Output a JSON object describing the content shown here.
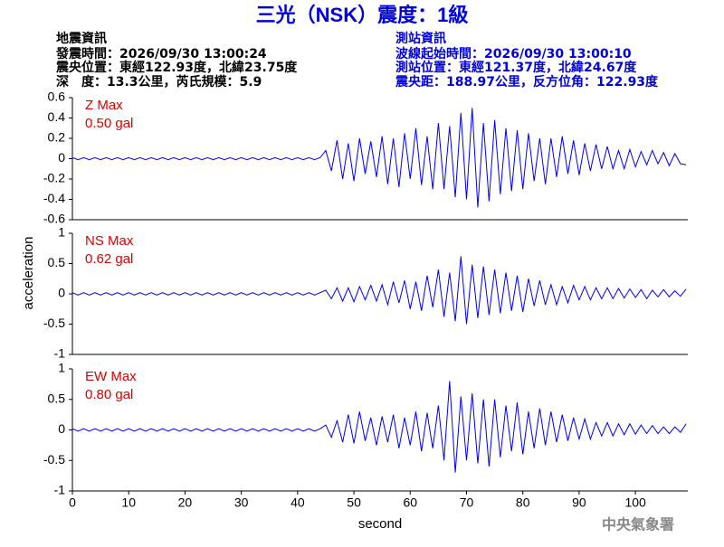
{
  "header": {
    "title": "三光（NSK）震度：1級",
    "left_heading": "地震資訊",
    "left_lines": [
      "發震時間：2026/09/30 13:00:24",
      "震央位置：東經122.93度，北緯23.75度",
      "深　度：13.3公里，芮氏規模：5.9"
    ],
    "right_heading": "測站資訊",
    "right_lines": [
      "波線起始時間：2026/09/30 13:00:10",
      "測站位置：東經121.37度，北緯24.67度",
      "震央距：188.97公里，反方位角：122.93度"
    ],
    "y_label": "acceleration",
    "footer": "中央氣象署"
  },
  "chart_data": [
    {
      "type": "line",
      "label": "Z Max",
      "max_label": "0.50 gal",
      "color": "#0000ee",
      "xlim": [
        0,
        109.3
      ],
      "ylim": [
        -0.6,
        0.6
      ],
      "yticks": [
        -0.6,
        -0.4,
        -0.2,
        0,
        0.2,
        0.4,
        0.6
      ],
      "x": [
        0,
        1,
        2,
        3,
        4,
        5,
        6,
        7,
        8,
        9,
        10,
        11,
        12,
        13,
        14,
        15,
        16,
        17,
        18,
        19,
        20,
        21,
        22,
        23,
        24,
        25,
        26,
        27,
        28,
        29,
        30,
        31,
        32,
        33,
        34,
        35,
        36,
        37,
        38,
        39,
        40,
        41,
        42,
        43,
        44,
        45,
        46,
        47,
        48,
        49,
        50,
        51,
        52,
        53,
        54,
        55,
        56,
        57,
        58,
        59,
        60,
        61,
        62,
        63,
        64,
        65,
        66,
        67,
        68,
        69,
        70,
        71,
        72,
        73,
        74,
        75,
        76,
        77,
        78,
        79,
        80,
        81,
        82,
        83,
        84,
        85,
        86,
        87,
        88,
        89,
        90,
        91,
        92,
        93,
        94,
        95,
        96,
        97,
        98,
        99,
        100,
        101,
        102,
        103,
        104,
        105,
        106,
        107,
        108,
        109
      ],
      "values": [
        0.01,
        -0.01,
        0.01,
        -0.01,
        0.01,
        -0.01,
        0.01,
        -0.01,
        0.01,
        -0.01,
        0.01,
        -0.01,
        0.01,
        -0.01,
        0.01,
        -0.01,
        0.01,
        -0.01,
        0.01,
        -0.01,
        0.01,
        -0.01,
        0.01,
        -0.01,
        0.01,
        -0.01,
        0.01,
        -0.01,
        0.01,
        -0.01,
        0.01,
        -0.01,
        0.01,
        -0.01,
        0.01,
        -0.01,
        0.01,
        -0.01,
        0.01,
        -0.01,
        0.01,
        -0.01,
        0.01,
        -0.01,
        0.01,
        0.08,
        -0.12,
        0.18,
        -0.2,
        0.15,
        -0.22,
        0.2,
        -0.15,
        0.17,
        -0.18,
        0.22,
        -0.25,
        0.2,
        -0.28,
        0.25,
        -0.2,
        0.3,
        -0.26,
        0.22,
        -0.3,
        0.35,
        -0.3,
        0.32,
        -0.38,
        0.45,
        -0.4,
        0.5,
        -0.48,
        0.35,
        -0.42,
        0.38,
        -0.35,
        0.3,
        -0.32,
        0.28,
        -0.3,
        0.25,
        -0.22,
        0.2,
        -0.25,
        0.2,
        -0.18,
        0.22,
        -0.15,
        0.18,
        -0.16,
        0.15,
        -0.12,
        0.14,
        -0.1,
        0.12,
        -0.1,
        0.08,
        -0.1,
        0.09,
        -0.08,
        0.07,
        -0.06,
        0.08,
        -0.05,
        0.06,
        -0.07,
        0.05,
        -0.05,
        -0.06
      ]
    },
    {
      "type": "line",
      "label": "NS Max",
      "max_label": "0.62 gal",
      "color": "#0000ee",
      "xlim": [
        0,
        109.3
      ],
      "ylim": [
        -1,
        1
      ],
      "yticks": [
        -1,
        -0.5,
        0,
        0.5,
        1
      ],
      "x": [
        0,
        1,
        2,
        3,
        4,
        5,
        6,
        7,
        8,
        9,
        10,
        11,
        12,
        13,
        14,
        15,
        16,
        17,
        18,
        19,
        20,
        21,
        22,
        23,
        24,
        25,
        26,
        27,
        28,
        29,
        30,
        31,
        32,
        33,
        34,
        35,
        36,
        37,
        38,
        39,
        40,
        41,
        42,
        43,
        44,
        45,
        46,
        47,
        48,
        49,
        50,
        51,
        52,
        53,
        54,
        55,
        56,
        57,
        58,
        59,
        60,
        61,
        62,
        63,
        64,
        65,
        66,
        67,
        68,
        69,
        70,
        71,
        72,
        73,
        74,
        75,
        76,
        77,
        78,
        79,
        80,
        81,
        82,
        83,
        84,
        85,
        86,
        87,
        88,
        89,
        90,
        91,
        92,
        93,
        94,
        95,
        96,
        97,
        98,
        99,
        100,
        101,
        102,
        103,
        104,
        105,
        106,
        107,
        108,
        109
      ],
      "values": [
        0.02,
        -0.02,
        0.02,
        -0.02,
        0.02,
        -0.02,
        0.02,
        -0.02,
        0.02,
        -0.02,
        0.02,
        -0.02,
        0.02,
        -0.02,
        0.02,
        -0.02,
        0.02,
        -0.02,
        0.02,
        -0.02,
        0.02,
        -0.02,
        0.02,
        -0.02,
        0.02,
        -0.02,
        0.02,
        -0.02,
        0.02,
        -0.02,
        0.02,
        -0.02,
        0.02,
        -0.02,
        0.02,
        -0.02,
        0.02,
        -0.02,
        0.02,
        -0.02,
        0.02,
        -0.02,
        0.02,
        -0.02,
        0.02,
        0.06,
        -0.08,
        0.1,
        -0.12,
        0.1,
        -0.13,
        0.12,
        -0.1,
        0.14,
        -0.12,
        0.15,
        -0.18,
        0.2,
        -0.15,
        0.22,
        -0.25,
        0.2,
        -0.28,
        0.3,
        -0.22,
        0.4,
        -0.38,
        0.35,
        -0.45,
        0.62,
        -0.5,
        0.48,
        -0.4,
        0.45,
        -0.35,
        0.4,
        -0.32,
        0.35,
        -0.28,
        0.3,
        -0.3,
        0.25,
        -0.2,
        0.22,
        -0.18,
        0.15,
        -0.18,
        0.12,
        -0.15,
        0.14,
        -0.1,
        0.12,
        -0.1,
        0.1,
        -0.08,
        0.1,
        -0.08,
        0.09,
        -0.07,
        0.08,
        -0.06,
        0.07,
        -0.08,
        0.06,
        -0.05,
        0.07,
        -0.05,
        0.05,
        -0.04,
        0.08
      ]
    },
    {
      "type": "line",
      "label": "EW Max",
      "max_label": "0.80 gal",
      "color": "#0000ee",
      "xlim": [
        0,
        109.3
      ],
      "ylim": [
        -1,
        1
      ],
      "yticks": [
        -1,
        -0.5,
        0,
        0.5,
        1
      ],
      "xticks": [
        0,
        10,
        20,
        30,
        40,
        50,
        60,
        70,
        80,
        90,
        100
      ],
      "x_label": "second",
      "x": [
        0,
        1,
        2,
        3,
        4,
        5,
        6,
        7,
        8,
        9,
        10,
        11,
        12,
        13,
        14,
        15,
        16,
        17,
        18,
        19,
        20,
        21,
        22,
        23,
        24,
        25,
        26,
        27,
        28,
        29,
        30,
        31,
        32,
        33,
        34,
        35,
        36,
        37,
        38,
        39,
        40,
        41,
        42,
        43,
        44,
        45,
        46,
        47,
        48,
        49,
        50,
        51,
        52,
        53,
        54,
        55,
        56,
        57,
        58,
        59,
        60,
        61,
        62,
        63,
        64,
        65,
        66,
        67,
        68,
        69,
        70,
        71,
        72,
        73,
        74,
        75,
        76,
        77,
        78,
        79,
        80,
        81,
        82,
        83,
        84,
        85,
        86,
        87,
        88,
        89,
        90,
        91,
        92,
        93,
        94,
        95,
        96,
        97,
        98,
        99,
        100,
        101,
        102,
        103,
        104,
        105,
        106,
        107,
        108,
        109
      ],
      "values": [
        0.02,
        -0.02,
        0.02,
        -0.02,
        0.02,
        -0.02,
        0.02,
        -0.02,
        0.02,
        -0.02,
        0.02,
        -0.02,
        0.02,
        -0.02,
        0.02,
        -0.02,
        0.02,
        -0.02,
        0.02,
        -0.02,
        0.02,
        -0.02,
        0.02,
        -0.02,
        0.02,
        -0.02,
        0.02,
        -0.02,
        0.02,
        -0.02,
        0.02,
        -0.02,
        0.02,
        -0.02,
        0.02,
        -0.02,
        0.02,
        -0.02,
        0.02,
        -0.02,
        0.02,
        -0.02,
        0.02,
        -0.02,
        0.02,
        0.08,
        -0.12,
        0.15,
        -0.2,
        0.25,
        -0.22,
        0.3,
        -0.18,
        0.2,
        -0.25,
        0.22,
        -0.2,
        0.25,
        -0.3,
        0.2,
        -0.25,
        0.3,
        -0.35,
        0.28,
        -0.3,
        0.4,
        -0.5,
        0.8,
        -0.7,
        0.55,
        -0.5,
        0.6,
        -0.55,
        0.5,
        -0.6,
        0.5,
        -0.45,
        0.4,
        -0.35,
        0.45,
        -0.4,
        0.3,
        -0.3,
        0.35,
        -0.25,
        0.3,
        -0.2,
        0.25,
        -0.18,
        0.2,
        -0.15,
        0.18,
        -0.15,
        0.12,
        -0.1,
        0.12,
        -0.1,
        0.1,
        -0.08,
        0.1,
        -0.07,
        0.08,
        -0.06,
        0.07,
        -0.06,
        0.05,
        -0.06,
        0.05,
        -0.04,
        0.1
      ]
    }
  ]
}
